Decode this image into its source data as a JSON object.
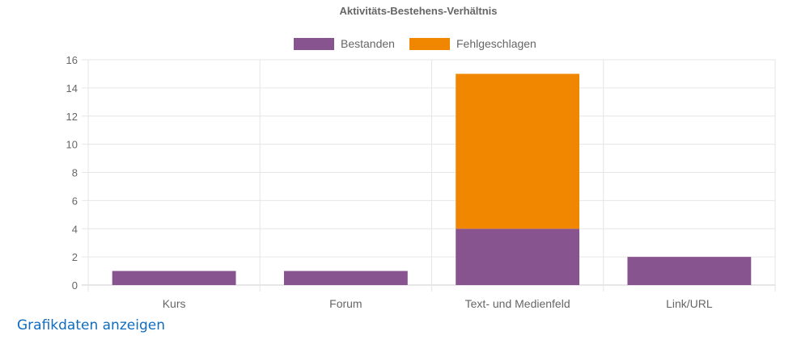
{
  "chart_data": {
    "type": "bar",
    "stacked": true,
    "title": "Aktivitäts-Bestehens-Verhältnis",
    "categories": [
      "Kurs",
      "Forum",
      "Text- und Medienfeld",
      "Link/URL"
    ],
    "series": [
      {
        "name": "Bestanden",
        "values": [
          1,
          1,
          4,
          2
        ],
        "color": "#88548f"
      },
      {
        "name": "Fehlgeschlagen",
        "values": [
          0,
          0,
          11,
          0
        ],
        "color": "#f18700"
      }
    ],
    "xlabel": "",
    "ylabel": "",
    "ylim": [
      0,
      16
    ],
    "yticks": [
      0,
      2,
      4,
      6,
      8,
      10,
      12,
      14,
      16
    ],
    "grid": true,
    "legend": "top"
  },
  "link": {
    "label": "Grafikdaten anzeigen",
    "color": "#0f6cbf"
  }
}
